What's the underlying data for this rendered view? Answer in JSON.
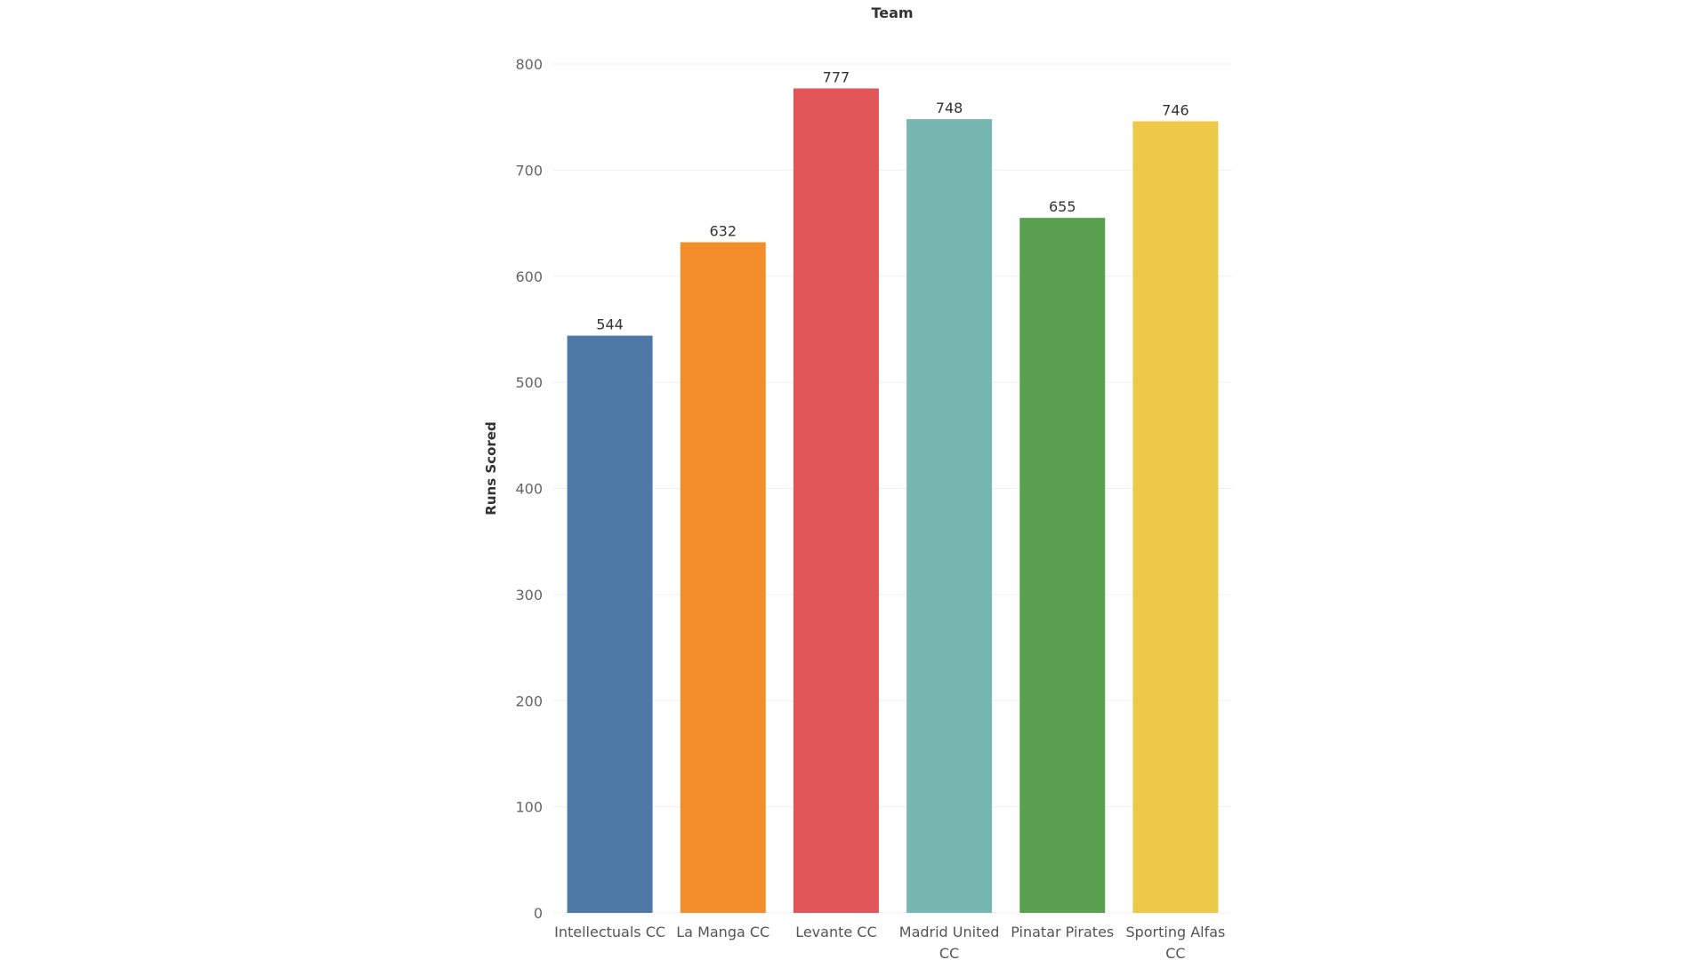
{
  "chart_data": {
    "type": "bar",
    "title": "Team",
    "xlabel": "",
    "ylabel": "Runs Scored",
    "categories": [
      [
        "Intellectuals CC"
      ],
      [
        "La Manga CC"
      ],
      [
        "Levante CC"
      ],
      [
        "Madrid United",
        "CC"
      ],
      [
        "Pinatar Pirates"
      ],
      [
        "Sporting Alfas",
        "CC"
      ]
    ],
    "values": [
      544,
      632,
      777,
      748,
      655,
      746
    ],
    "data_labels": [
      "544",
      "632",
      "777",
      "748",
      "655",
      "746"
    ],
    "colors": [
      "#4e79a7",
      "#f28e2b",
      "#e15759",
      "#76b7b2",
      "#59a14f",
      "#edc948"
    ],
    "ylim": [
      0,
      800
    ],
    "yticks": [
      "0",
      "100",
      "200",
      "300",
      "400",
      "500",
      "600",
      "700",
      "800"
    ],
    "grid": true,
    "legend": "none"
  }
}
